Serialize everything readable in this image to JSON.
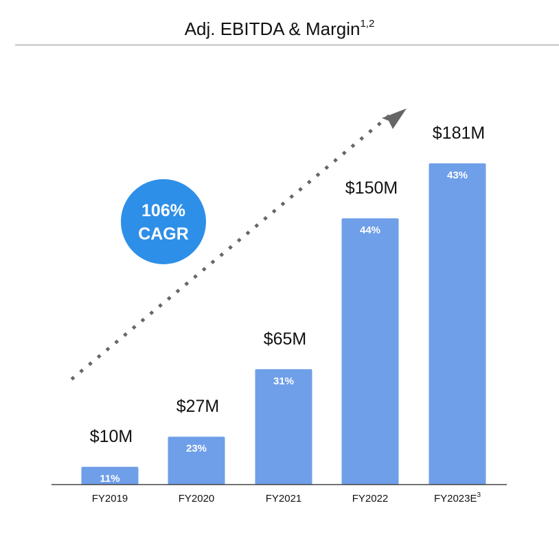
{
  "title": "Adj. EBITDA & Margin",
  "title_footnote": "1,2",
  "colors": {
    "bar": "#6f9fe9",
    "badge": "#2e8fe8",
    "trend": "#666666",
    "axis": "#444444"
  },
  "badge": {
    "line1": "106%",
    "line2": "CAGR"
  },
  "chart_data": {
    "type": "bar",
    "title": "Adj. EBITDA & Margin",
    "categories": [
      "FY2019",
      "FY2020",
      "FY2021",
      "FY2022",
      "FY2023E"
    ],
    "category_footnotes": [
      "",
      "",
      "",
      "",
      "3"
    ],
    "values": [
      10,
      27,
      65,
      150,
      181
    ],
    "value_labels": [
      "$10M",
      "$27M",
      "$65M",
      "$150M",
      "$181M"
    ],
    "margins": [
      "11%",
      "23%",
      "31%",
      "44%",
      "43%"
    ],
    "unit": "$M",
    "annotation": "106% CAGR",
    "grid": false,
    "ylim": [
      0,
      200
    ]
  }
}
